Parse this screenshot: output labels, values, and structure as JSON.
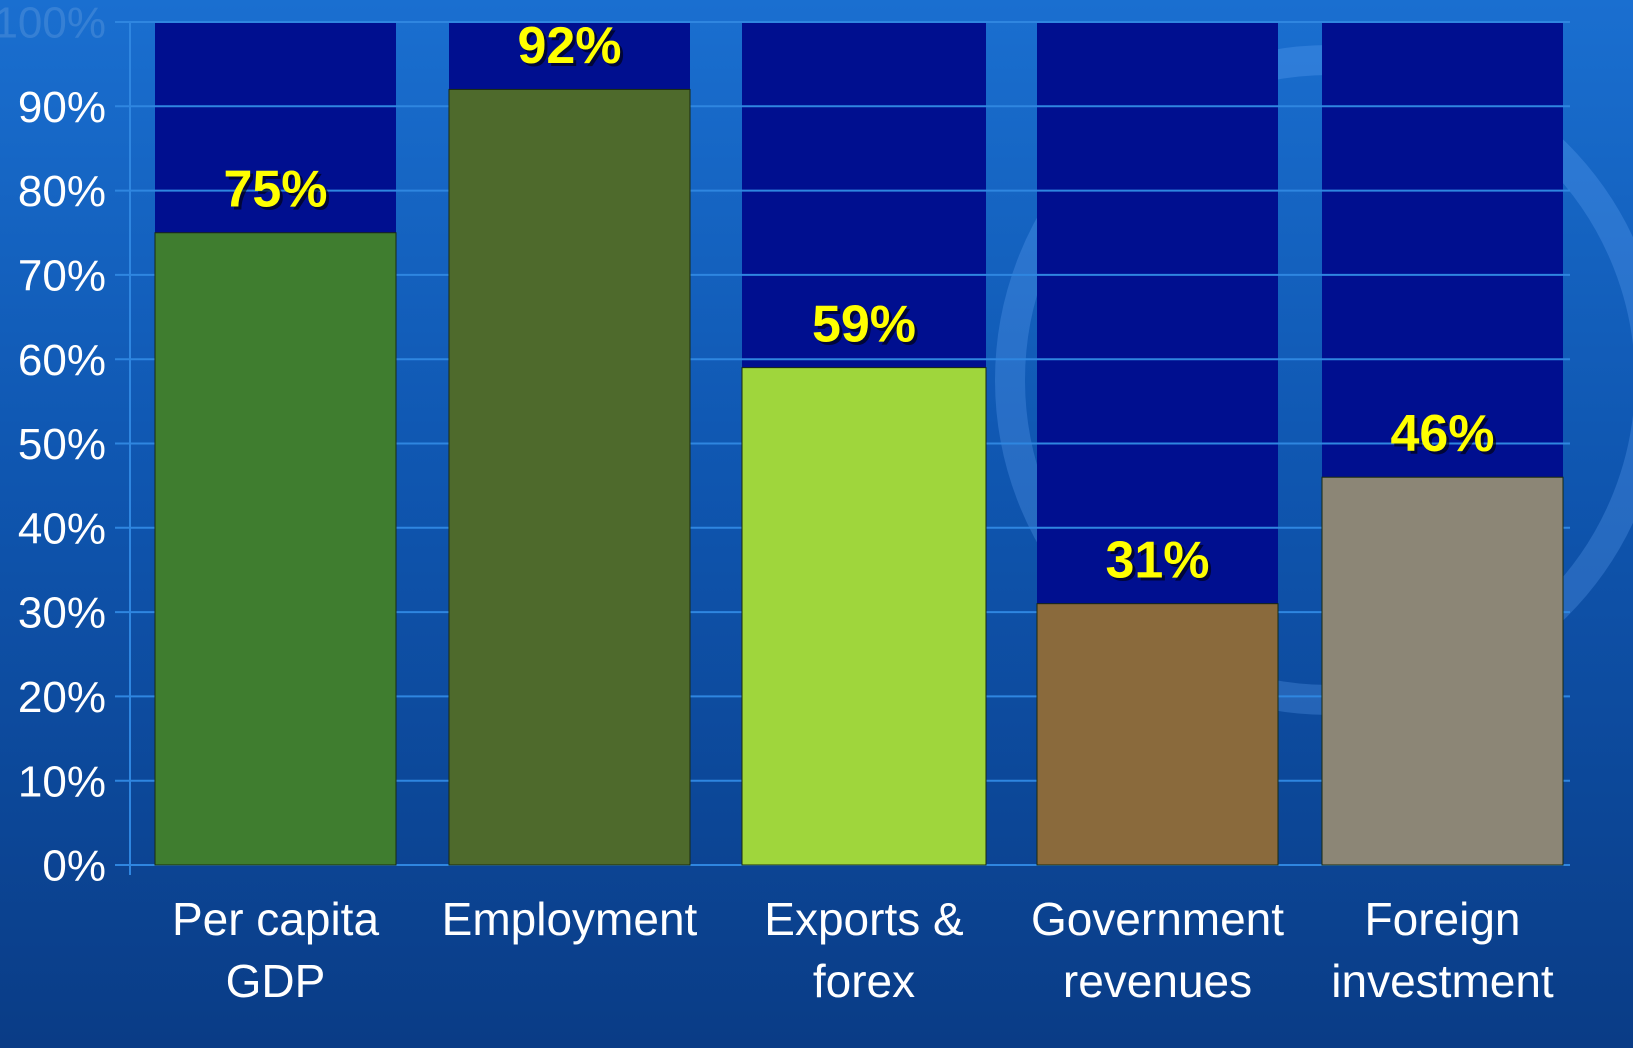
{
  "chart_data": {
    "type": "bar",
    "categories": [
      "Per capita GDP",
      "Employment",
      "Exports & forex",
      "Government revenues",
      "Foreign investment"
    ],
    "values": [
      75,
      92,
      59,
      31,
      46
    ],
    "value_labels": [
      "75%",
      "92%",
      "59%",
      "31%",
      "46%"
    ],
    "colors": [
      "#3f7d2f",
      "#4e6a2c",
      "#9fd63c",
      "#8a6a3c",
      "#8c8676"
    ],
    "ylim": [
      0,
      100
    ],
    "yticks": [
      {
        "value": 0,
        "label": "0%"
      },
      {
        "value": 10,
        "label": "10%"
      },
      {
        "value": 20,
        "label": "20%"
      },
      {
        "value": 30,
        "label": "30%"
      },
      {
        "value": 40,
        "label": "40%"
      },
      {
        "value": 50,
        "label": "50%"
      },
      {
        "value": 60,
        "label": "60%"
      },
      {
        "value": 70,
        "label": "70%"
      },
      {
        "value": 80,
        "label": "80%"
      },
      {
        "value": 90,
        "label": "90%"
      },
      {
        "value": 100,
        "label": "100%"
      }
    ],
    "grid": true
  }
}
